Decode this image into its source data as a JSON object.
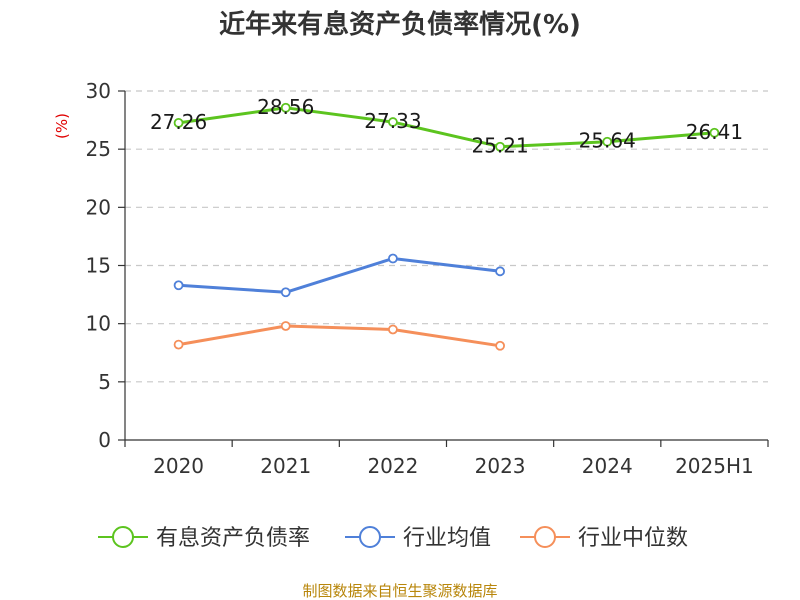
{
  "chart_data": {
    "type": "line",
    "title": "近年来有息资产负债率情况(%)",
    "ylabel": "(%)",
    "ylim": [
      0,
      30
    ],
    "yticks": [
      "0",
      "5",
      "10",
      "15",
      "20",
      "25",
      "30"
    ],
    "categories": [
      "2020",
      "2021",
      "2022",
      "2023",
      "2024",
      "2025H1"
    ],
    "grid": true,
    "legend_position": "bottom",
    "series": [
      {
        "name": "有息资产负债率",
        "color": "#5cc41f",
        "values": [
          27.26,
          28.56,
          27.33,
          25.21,
          25.64,
          26.41
        ],
        "labels": [
          "27.26",
          "28.56",
          "27.33",
          "25.21",
          "25.64",
          "26.41"
        ]
      },
      {
        "name": "行业均值",
        "color": "#4f80d9",
        "values": [
          13.3,
          12.7,
          15.6,
          14.5,
          null,
          null
        ]
      },
      {
        "name": "行业中位数",
        "color": "#f58f5a",
        "values": [
          8.2,
          9.8,
          9.5,
          8.1,
          null,
          null
        ]
      }
    ]
  },
  "source": "制图数据来自恒生聚源数据库"
}
